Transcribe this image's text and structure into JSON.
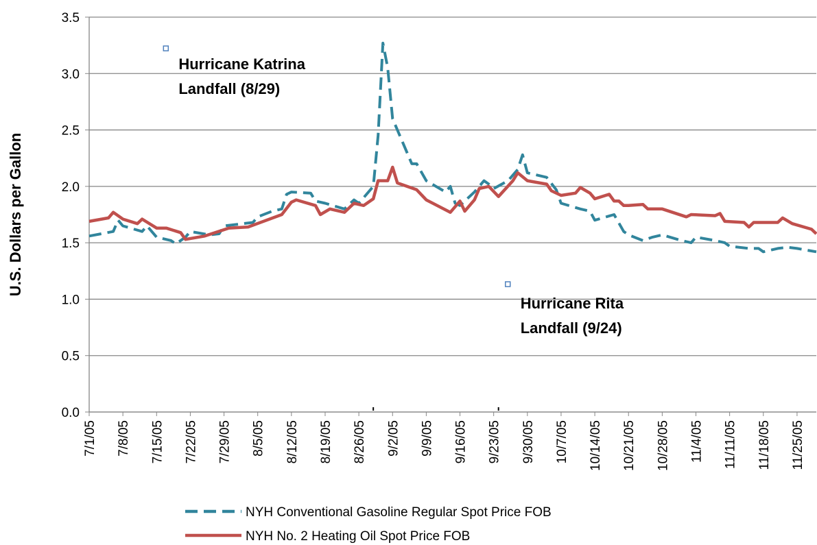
{
  "chart_data": {
    "type": "line",
    "y_label": "U.S. Dollars per Gallon",
    "xlim": [
      "7/1/05",
      "11/29/05"
    ],
    "xticks": [
      "7/1/05",
      "7/8/05",
      "7/15/05",
      "7/22/05",
      "7/29/05",
      "8/5/05",
      "8/12/05",
      "8/19/05",
      "8/26/05",
      "9/2/05",
      "9/9/05",
      "9/16/05",
      "9/23/05",
      "9/30/05",
      "10/7/05",
      "10/14/05",
      "10/21/05",
      "10/28/05",
      "11/4/05",
      "11/11/05",
      "11/18/05",
      "11/25/05"
    ],
    "ylim": [
      0,
      3.5
    ],
    "yticks": [
      {
        "value": 0,
        "label": "0.0"
      },
      {
        "value": 0.5,
        "label": "0.5"
      },
      {
        "value": 1,
        "label": "1.0"
      },
      {
        "value": 1.5,
        "label": "1.5"
      },
      {
        "value": 2,
        "label": "2.0"
      },
      {
        "value": 2.5,
        "label": "2.5"
      },
      {
        "value": 3,
        "label": "3.0"
      },
      {
        "value": 3.5,
        "label": "3.5"
      }
    ],
    "grid": true,
    "series": [
      {
        "name": "NYH Conventional Gasoline Regular Spot Price FOB",
        "color": "#31859c",
        "dash": true,
        "x": [
          "7/1/05",
          "7/6/05",
          "7/7/05",
          "7/8/05",
          "7/12/05",
          "7/13/05",
          "7/15/05",
          "7/18/05",
          "7/19/05",
          "7/21/05",
          "7/22/05",
          "7/26/05",
          "7/28/05",
          "7/29/05",
          "8/2/05",
          "8/4/05",
          "8/5/05",
          "8/8/05",
          "8/10/05",
          "8/11/05",
          "8/12/05",
          "8/16/05",
          "8/17/05",
          "8/19/05",
          "8/23/05",
          "8/25/05",
          "8/26/05",
          "8/29/05",
          "8/30/05",
          "8/31/05",
          "9/1/05",
          "9/2/05",
          "9/6/05",
          "9/7/05",
          "9/9/05",
          "9/13/05",
          "9/14/05",
          "9/15/05",
          "9/16/05",
          "9/19/05",
          "9/21/05",
          "9/22/05",
          "9/23/05",
          "9/26/05",
          "9/28/05",
          "9/29/05",
          "9/30/05",
          "10/4/05",
          "10/6/05",
          "10/7/05",
          "10/11/05",
          "10/13/05",
          "10/14/05",
          "10/18/05",
          "10/20/05",
          "10/21/05",
          "10/24/05",
          "10/26/05",
          "10/28/05",
          "11/1/05",
          "11/3/05",
          "11/4/05",
          "11/8/05",
          "11/10/05",
          "11/11/05",
          "11/15/05",
          "11/17/05",
          "11/18/05",
          "11/21/05",
          "11/23/05",
          "11/25/05",
          "11/29/05"
        ],
        "values": [
          1.56,
          1.6,
          1.7,
          1.65,
          1.6,
          1.65,
          1.55,
          1.52,
          1.49,
          1.55,
          1.6,
          1.57,
          1.58,
          1.65,
          1.67,
          1.68,
          1.73,
          1.78,
          1.8,
          1.93,
          1.95,
          1.94,
          1.87,
          1.85,
          1.8,
          1.88,
          1.85,
          2.0,
          2.45,
          3.27,
          3.05,
          2.6,
          2.2,
          2.2,
          2.05,
          1.95,
          2.0,
          1.85,
          1.83,
          1.95,
          2.05,
          2.02,
          1.98,
          2.05,
          2.15,
          2.28,
          2.12,
          2.08,
          1.97,
          1.85,
          1.8,
          1.78,
          1.7,
          1.75,
          1.6,
          1.57,
          1.52,
          1.55,
          1.57,
          1.52,
          1.5,
          1.55,
          1.52,
          1.5,
          1.47,
          1.45,
          1.45,
          1.42,
          1.45,
          1.46,
          1.45,
          1.42
        ]
      },
      {
        "name": "NYH No. 2 Heating Oil Spot Price FOB",
        "color": "#c0504d",
        "dash": false,
        "x": [
          "7/1/05",
          "7/5/05",
          "7/6/05",
          "7/8/05",
          "7/11/05",
          "7/12/05",
          "7/15/05",
          "7/17/05",
          "7/20/05",
          "7/21/05",
          "7/25/05",
          "7/30/05",
          "8/3/05",
          "8/10/05",
          "8/12/05",
          "8/13/05",
          "8/17/05",
          "8/18/05",
          "8/20/05",
          "8/23/05",
          "8/25/05",
          "8/27/05",
          "8/29/05",
          "8/30/05",
          "9/1/05",
          "9/2/05",
          "9/3/05",
          "9/7/05",
          "9/9/05",
          "9/14/05",
          "9/16/05",
          "9/17/05",
          "9/19/05",
          "9/20/05",
          "9/22/05",
          "9/24/05",
          "9/27/05",
          "9/28/05",
          "9/30/05",
          "10/4/05",
          "10/5/05",
          "10/7/05",
          "10/10/05",
          "10/11/05",
          "10/13/05",
          "10/14/05",
          "10/17/05",
          "10/18/05",
          "10/19/05",
          "10/20/05",
          "10/21/05",
          "10/24/05",
          "10/25/05",
          "10/28/05",
          "11/2/05",
          "11/3/05",
          "11/8/05",
          "11/9/05",
          "11/10/05",
          "11/14/05",
          "11/15/05",
          "11/16/05",
          "11/21/05",
          "11/22/05",
          "11/24/05",
          "11/28/05",
          "11/29/05"
        ],
        "values": [
          1.69,
          1.72,
          1.77,
          1.71,
          1.67,
          1.71,
          1.63,
          1.63,
          1.59,
          1.53,
          1.56,
          1.63,
          1.64,
          1.75,
          1.86,
          1.88,
          1.83,
          1.75,
          1.8,
          1.77,
          1.85,
          1.83,
          1.89,
          2.05,
          2.05,
          2.17,
          2.03,
          1.97,
          1.88,
          1.77,
          1.87,
          1.78,
          1.88,
          1.98,
          2.0,
          1.91,
          2.05,
          2.12,
          2.05,
          2.02,
          1.96,
          1.92,
          1.94,
          1.99,
          1.94,
          1.89,
          1.93,
          1.87,
          1.87,
          1.83,
          1.83,
          1.84,
          1.8,
          1.8,
          1.73,
          1.75,
          1.74,
          1.76,
          1.69,
          1.68,
          1.64,
          1.68,
          1.68,
          1.72,
          1.67,
          1.62,
          1.58
        ]
      }
    ],
    "annotations": [
      {
        "line1": "Hurricane Katrina",
        "line2": "Landfall (8/29)",
        "date": "8/29/05",
        "marker_x": "7/17/05",
        "marker_y": 3.22
      },
      {
        "line1": "Hurricane Rita",
        "line2": "Landfall (9/24)",
        "date": "9/24/05",
        "marker_x": "9/26/05",
        "marker_y": 1.13
      }
    ]
  }
}
